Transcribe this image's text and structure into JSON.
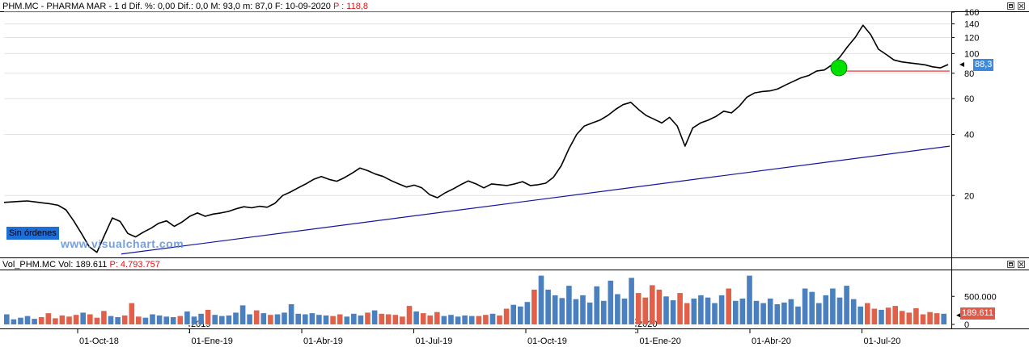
{
  "header": {
    "prefix": "PHM.MC - PHARMA MAR -  1 d  Dif. %: 0,00  Dif.: 0,0  M: 93,0  m: 87,0  F: 10-09-2020",
    "price": "P : 118,8"
  },
  "volume_header": {
    "prefix": "Vol_PHM.MC  Vol:  189.611",
    "price": "P:  4.793.757"
  },
  "orders_label": "Sin órdenes",
  "watermark": "www.visualchart.com",
  "colors": {
    "price_line": "#000000",
    "trend_line": "#1414a0",
    "support_line": "#e02020",
    "marker": "#00e000",
    "vol_up": "#4a7fc0",
    "vol_down": "#e0604a",
    "badge_price": "#3a8ae0",
    "badge_vol": "#e05a4a"
  },
  "chart_data": [
    {
      "type": "line",
      "title": "PHM.MC - PHARMA MAR",
      "scale": "log",
      "ylim": [
        10,
        160
      ],
      "y_ticks": [
        "160",
        "140",
        "120",
        "100",
        "80",
        "60",
        "40",
        "20"
      ],
      "last_value_label": "88,3",
      "x_labels": [
        "01-Oct-18",
        "01-Ene-19",
        "01-Abr-19",
        "01-Jul-19",
        "01-Oct-19",
        "01-Ene-20",
        "01-Abr-20",
        "01-Jul-20"
      ],
      "year_labels": [
        "2019",
        "2020"
      ],
      "series": [
        {
          "values": [
            18.5,
            18.6,
            18.7,
            18.8,
            18.6,
            18.4,
            18.2,
            17.9,
            17.0,
            15.0,
            13.0,
            11.2,
            10.5,
            12.8,
            15.5,
            14.9,
            13.0,
            12.5,
            13.2,
            13.8,
            14.6,
            15.0,
            14.1,
            14.8,
            15.8,
            16.4,
            15.8,
            16.2,
            16.4,
            16.7,
            17.2,
            17.6,
            17.4,
            17.7,
            17.5,
            18.3,
            20.0,
            20.8,
            21.8,
            22.8,
            24.0,
            24.8,
            24.0,
            23.5,
            24.5,
            25.8,
            27.3,
            26.5,
            25.5,
            24.8,
            23.7,
            22.8,
            22.0,
            22.5,
            21.8,
            20.2,
            19.5,
            20.6,
            21.5,
            22.6,
            23.6,
            22.8,
            21.8,
            22.8,
            22.6,
            22.4,
            22.8,
            23.4,
            22.4,
            22.6,
            23.0,
            24.6,
            28.0,
            34.0,
            40.0,
            44.0,
            45.5,
            47.0,
            49.5,
            53.0,
            56.0,
            57.5,
            53.0,
            49.5,
            47.5,
            45.5,
            48.5,
            44.0,
            35.0,
            43.0,
            45.5,
            47.0,
            49.0,
            52.0,
            51.0,
            55.0,
            61.0,
            64.0,
            65.0,
            65.5,
            67.0,
            70.0,
            73.0,
            76.0,
            78.0,
            82.0,
            83.0,
            88.0,
            96.0,
            108.0,
            120.0,
            138.0,
            124.0,
            105.0,
            99.0,
            93.0,
            91.0,
            90.0,
            89.0,
            88.0,
            86.0,
            85.0,
            88.3
          ]
        },
        {
          "name": "",
          "values": [
            10.3,
            35.0
          ]
        },
        {
          "name": "",
          "values": [
            82.0,
            82.0
          ]
        }
      ]
    },
    {
      "type": "bar",
      "title": "Vol_PHM.MC",
      "ylim": [
        0,
        950000
      ],
      "y_ticks": [
        "500.000",
        "0"
      ],
      "last_value_label": "189.611",
      "values": [
        180000,
        90000,
        120000,
        150000,
        100000,
        130000,
        200000,
        110000,
        160000,
        140000,
        170000,
        210000,
        180000,
        120000,
        240000,
        150000,
        130000,
        160000,
        380000,
        140000,
        120000,
        180000,
        160000,
        140000,
        130000,
        150000,
        230000,
        140000,
        190000,
        260000,
        170000,
        150000,
        160000,
        210000,
        340000,
        180000,
        250000,
        200000,
        170000,
        180000,
        210000,
        360000,
        190000,
        180000,
        200000,
        170000,
        160000,
        150000,
        180000,
        140000,
        190000,
        160000,
        210000,
        250000,
        190000,
        180000,
        170000,
        140000,
        330000,
        230000,
        200000,
        160000,
        220000,
        150000,
        170000,
        140000,
        160000,
        150000,
        150000,
        170000,
        190000,
        160000,
        280000,
        350000,
        320000,
        400000,
        620000,
        870000,
        620000,
        520000,
        470000,
        690000,
        450000,
        520000,
        390000,
        680000,
        420000,
        780000,
        540000,
        460000,
        830000,
        560000,
        480000,
        700000,
        620000,
        500000,
        430000,
        560000,
        380000,
        460000,
        520000,
        480000,
        380000,
        520000,
        640000,
        420000,
        460000,
        870000,
        420000,
        380000,
        460000,
        360000,
        390000,
        450000,
        320000,
        640000,
        580000,
        380000,
        520000,
        640000,
        480000,
        690000,
        450000,
        320000,
        380000,
        280000,
        260000,
        300000,
        330000,
        240000,
        210000,
        290000,
        180000,
        220000,
        200000,
        190000
      ]
    }
  ]
}
